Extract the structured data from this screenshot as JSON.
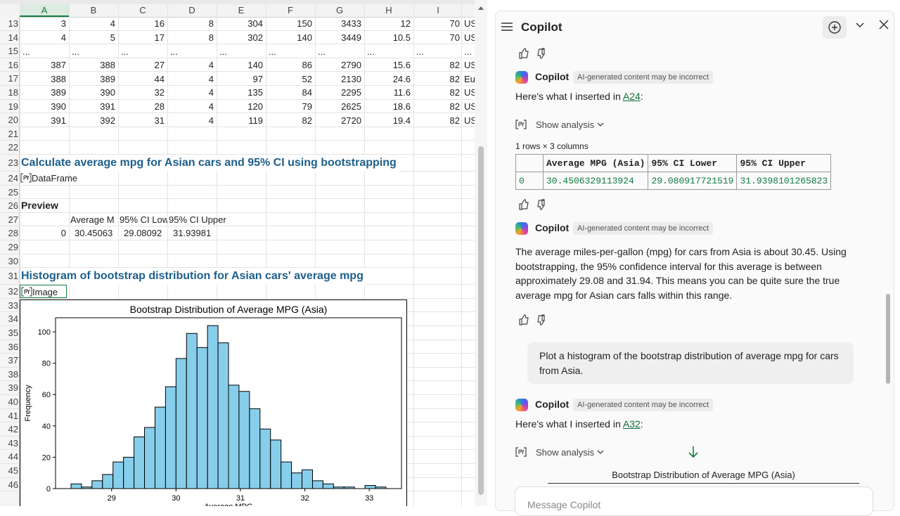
{
  "sheet": {
    "columns": [
      "A",
      "B",
      "C",
      "D",
      "E",
      "F",
      "G",
      "H",
      "I"
    ],
    "rows": [
      {
        "number": 13,
        "cells": [
          3,
          4,
          16,
          8,
          304,
          150,
          3433,
          12,
          70,
          "US"
        ]
      },
      {
        "number": 14,
        "cells": [
          4,
          5,
          17,
          8,
          302,
          140,
          3449,
          10.5,
          70,
          "US"
        ]
      },
      {
        "number": 15,
        "cells": [
          "...",
          "...",
          "...",
          "...",
          "...",
          "...",
          "...",
          "...",
          "...",
          "..."
        ]
      },
      {
        "number": 16,
        "cells": [
          387,
          388,
          27,
          4,
          140,
          86,
          2790,
          15.6,
          82,
          "US"
        ]
      },
      {
        "number": 17,
        "cells": [
          388,
          389,
          44,
          4,
          97,
          52,
          2130,
          24.6,
          82,
          "Eu"
        ]
      },
      {
        "number": 18,
        "cells": [
          389,
          390,
          32,
          4,
          135,
          84,
          2295,
          11.6,
          82,
          "US"
        ]
      },
      {
        "number": 19,
        "cells": [
          390,
          391,
          28,
          4,
          120,
          79,
          2625,
          18.6,
          82,
          "US"
        ]
      },
      {
        "number": 20,
        "cells": [
          391,
          392,
          31,
          4,
          119,
          82,
          2720,
          19.4,
          82,
          "US"
        ]
      },
      {
        "number": 21
      },
      {
        "number": 22
      },
      {
        "number": 23,
        "heading": "Calculate average mpg for Asian cars and 95% CI using bootstrapping"
      },
      {
        "number": 24,
        "python": "DataFrame"
      },
      {
        "number": 25
      },
      {
        "number": 26,
        "label": "Preview"
      },
      {
        "number": 27,
        "preview": [
          "Average M",
          "95% CI Low",
          "95% CI Upper"
        ]
      },
      {
        "number": 28,
        "index": 0,
        "preview": [
          30.45063,
          29.08092,
          31.93981
        ]
      },
      {
        "number": 29
      },
      {
        "number": 30
      },
      {
        "number": 31,
        "heading": "Histogram of bootstrap distribution for Asian cars' average mpg"
      },
      {
        "number": 32,
        "python": "Image"
      },
      {
        "number": 33
      },
      {
        "number": 34
      },
      {
        "number": 35
      },
      {
        "number": 36
      },
      {
        "number": 37
      },
      {
        "number": 38
      },
      {
        "number": 39
      },
      {
        "number": 40
      },
      {
        "number": 41
      },
      {
        "number": 42
      },
      {
        "number": 43
      },
      {
        "number": 44
      },
      {
        "number": 45
      },
      {
        "number": 46
      }
    ]
  },
  "chart_data": {
    "type": "histogram",
    "title": "Bootstrap Distribution of Average MPG (Asia)",
    "xlabel": "Average MPG",
    "ylabel": "Frequency",
    "bins": [
      28.37,
      28.533,
      28.696,
      28.859,
      29.022,
      29.185,
      29.348,
      29.511,
      29.674,
      29.837,
      30.0,
      30.163,
      30.326,
      30.489,
      30.652,
      30.815,
      30.978,
      31.141,
      31.304,
      31.467,
      31.63,
      31.793,
      31.956,
      32.119,
      32.282,
      32.445,
      32.608,
      32.771,
      32.934,
      33.097,
      33.26
    ],
    "counts": [
      3,
      1,
      5,
      9,
      17,
      20,
      33,
      39,
      52,
      65,
      83,
      99,
      90,
      104,
      93,
      66,
      62,
      51,
      38,
      31,
      17,
      10,
      12,
      5,
      3,
      1,
      1,
      0,
      2,
      1
    ],
    "color": "#87ceeb",
    "edgecolor": "#000000",
    "xlim": [
      28.13,
      33.5
    ],
    "ylim": [
      0,
      109
    ],
    "xticks": [
      29,
      30,
      31,
      32,
      33
    ],
    "yticks": [
      0,
      20,
      40,
      60,
      80,
      100
    ]
  },
  "copilot": {
    "title": "Copilot",
    "messages": [
      {
        "author": "Copilot",
        "badge": "AI-generated content may be incorrect",
        "text_before": "Here's what I inserted in ",
        "link": "A24",
        "text_after": ":",
        "analysis": "Show analysis",
        "table_caption": "1 rows × 3 columns",
        "table": {
          "columns": [
            "Average MPG (Asia)",
            "95% CI Lower",
            "95% CI Upper"
          ],
          "rows": [
            {
              "index": 0,
              "cells": [
                30.4506329113924,
                29.080917721519,
                31.9398101265823
              ]
            }
          ]
        }
      },
      {
        "author": "Copilot",
        "badge": "AI-generated content may be incorrect",
        "text": "The average miles-per-gallon (mpg) for cars from Asia is about 30.45. Using bootstrapping, the 95% confidence interval for this average is between approximately 29.08 and 31.94. This means you can be quite sure the true average mpg for Asian cars falls within this range."
      },
      {
        "user_text": "Plot a histogram of the bootstrap distribution of average mpg for cars from Asia."
      },
      {
        "author": "Copilot",
        "badge": "AI-generated content may be incorrect",
        "text_before": "Here's what I inserted in ",
        "link": "A32",
        "text_after": ":",
        "analysis": "Show analysis",
        "chart_title": "Bootstrap Distribution of Average MPG (Asia)"
      }
    ],
    "input_placeholder": "Message Copilot"
  }
}
